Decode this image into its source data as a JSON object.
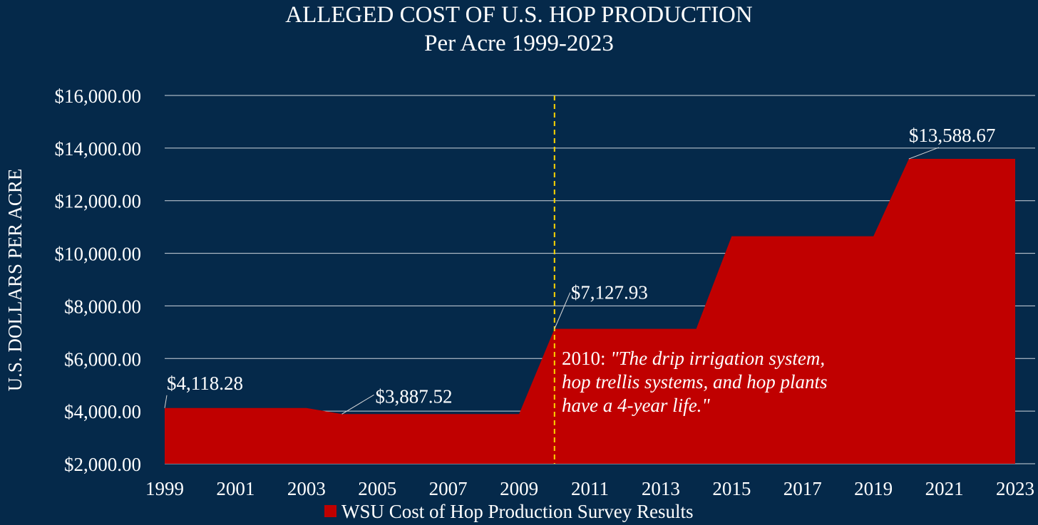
{
  "chart_data": {
    "type": "area",
    "title": "ALLEGED COST OF U.S. HOP PRODUCTION",
    "subtitle": "Per Acre 1999-2023",
    "xlabel": "",
    "ylabel": "U.S. DOLLARS PER ACRE",
    "ylim": [
      2000,
      16000
    ],
    "xlim": [
      1999,
      2023
    ],
    "y_ticks": [
      2000,
      4000,
      6000,
      8000,
      10000,
      12000,
      14000,
      16000
    ],
    "y_tick_labels": [
      "$2,000.00",
      "$4,000.00",
      "$6,000.00",
      "$8,000.00",
      "$10,000.00",
      "$12,000.00",
      "$14,000.00",
      "$16,000.00"
    ],
    "x_tick_labels": [
      "1999",
      "2001",
      "2003",
      "2005",
      "2007",
      "2009",
      "2011",
      "2013",
      "2015",
      "2017",
      "2019",
      "2021",
      "2023"
    ],
    "grid": true,
    "legend_position": "bottom",
    "series": [
      {
        "name": "WSU Cost of Hop Production Survey Results",
        "color": "#c00000",
        "x": [
          1999,
          2000,
          2001,
          2002,
          2003,
          2004,
          2005,
          2006,
          2007,
          2008,
          2009,
          2010,
          2011,
          2012,
          2013,
          2014,
          2015,
          2016,
          2017,
          2018,
          2019,
          2020,
          2021,
          2022,
          2023
        ],
        "values": [
          4118.28,
          4118.28,
          4118.28,
          4118.28,
          4118.28,
          3887.52,
          3887.52,
          3887.52,
          3887.52,
          3887.52,
          3887.52,
          7127.93,
          7127.93,
          7127.93,
          7127.93,
          7127.93,
          10650,
          10650,
          10650,
          10650,
          10650,
          13588.67,
          13588.67,
          13588.67,
          13588.67
        ]
      }
    ],
    "data_labels": [
      {
        "x": 1999,
        "value": 4118.28,
        "text": "$4,118.28"
      },
      {
        "x": 2004,
        "value": 3887.52,
        "text": "$3,887.52"
      },
      {
        "x": 2010,
        "value": 7127.93,
        "text": "$7,127.93"
      },
      {
        "x": 2020,
        "value": 13588.67,
        "text": "$13,588.67"
      }
    ],
    "reference_line": {
      "x": 2010,
      "color": "#ffd700",
      "style": "dashed"
    },
    "annotation": {
      "prefix": "2010: ",
      "lines": [
        "\"The drip irrigation system,",
        "hop trellis systems, and hop plants",
        "have a 4-year life.\""
      ]
    },
    "colors": {
      "background": "#05294a",
      "grid": "#cfd6de",
      "text": "#ffffff"
    }
  }
}
